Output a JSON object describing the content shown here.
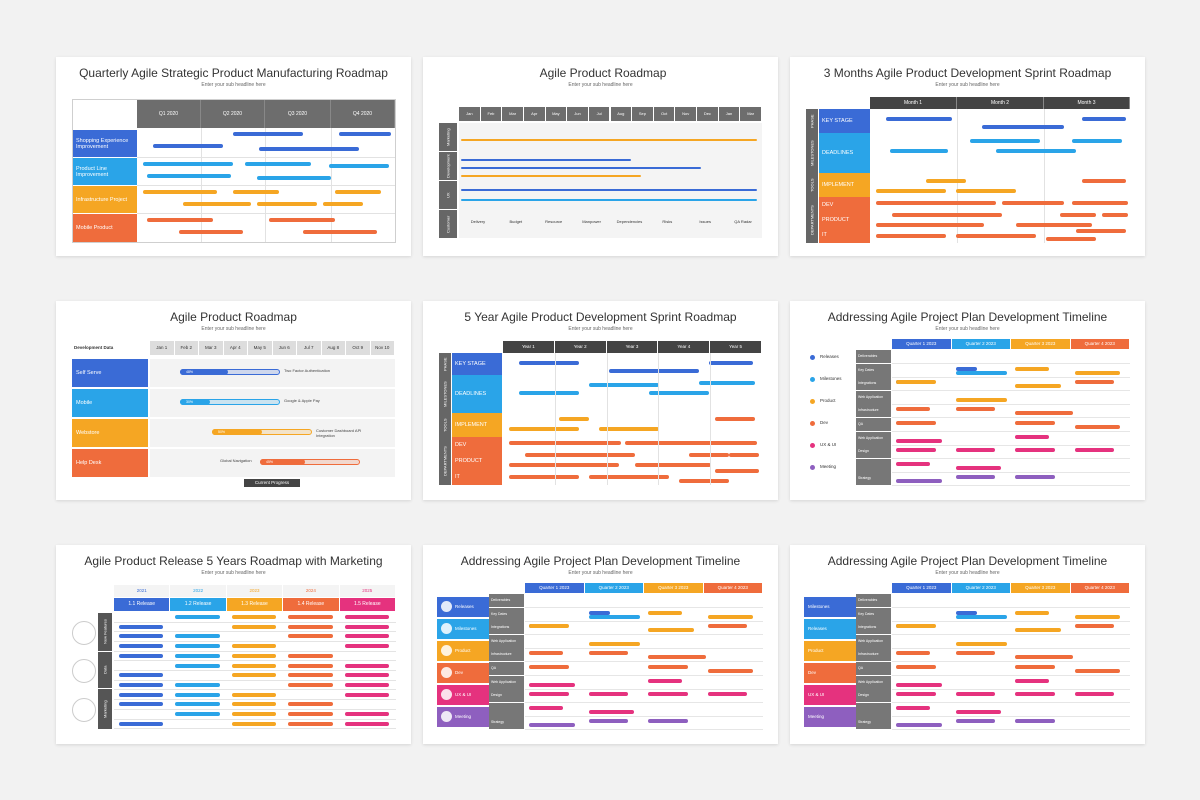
{
  "colors": {
    "blue": "#3a6bd6",
    "lblue": "#2aa4e8",
    "orange": "#f5a623",
    "dorange": "#ef6c3c",
    "pink": "#e5327e",
    "purple": "#8e5fbf",
    "gray": "#6d6d6d"
  },
  "slides": [
    {
      "title": "Quarterly Agile Strategic Product Manufacturing Roadmap",
      "subtitle": "Enter your sub headline here",
      "quarters": [
        "Q1 2020",
        "Q2 2020",
        "Q3 2020",
        "Q4 2020"
      ],
      "rows": [
        "Shopping Experience Improvement",
        "Product Line Improvement",
        "Infrastructure Project",
        "Mobile Product"
      ]
    },
    {
      "title": "Agile Product Roadmap",
      "subtitle": "Enter your sub headline here",
      "months": [
        "Jan",
        "Feb",
        "Mar",
        "Apr",
        "May",
        "Jun",
        "Jul",
        "Aug",
        "Sep",
        "Oct",
        "Nov",
        "Dec",
        "Jan",
        "Mar"
      ],
      "sections": [
        "Marketing",
        "Development",
        "UX",
        "Customer"
      ],
      "customer_items": [
        "Delivery",
        "Budget",
        "Resource",
        "Manpower",
        "Dependencies",
        "Risks",
        "Issues",
        "QA Radar"
      ]
    },
    {
      "title": "3 Months Agile Product Development Sprint Roadmap",
      "subtitle": "Enter your sub headline here",
      "periods": [
        "Month 1",
        "Month 2",
        "Month 3"
      ],
      "groups": [
        "PHASE",
        "MILESTONES",
        "TOOLS",
        "DEPARTMENTS"
      ],
      "rows": [
        "KEY STAGE",
        "DEADLINES",
        "IMPLEMENT",
        "DEV",
        "PRODUCT",
        "IT"
      ]
    },
    {
      "title": "Agile Product Roadmap",
      "subtitle": "Enter your sub headline here",
      "head": "Development Data",
      "dates": [
        "Jan 1",
        "Feb 2",
        "Mar 3",
        "Apr 4",
        "May 5",
        "Jun 6",
        "Jul 7",
        "Aug 8",
        "Oct 9",
        "Nov 10"
      ],
      "rows": [
        {
          "label": "Self Serve",
          "pct": "48%",
          "note": "Two Factor Authentication",
          "progress": 0.48
        },
        {
          "label": "Mobile",
          "pct": "30%",
          "note": "Google & Apple Pay",
          "progress": 0.3
        },
        {
          "label": "Webstore",
          "pct": "50%",
          "note": "Customer Dashboard API Integration",
          "progress": 0.5
        },
        {
          "label": "Help Desk",
          "pct": "45%",
          "note": "Global Navigation",
          "progress": 0.45
        }
      ],
      "footer": "Current Progress"
    },
    {
      "title": "5 Year Agile Product Development Sprint Roadmap",
      "subtitle": "Enter your sub headline here",
      "periods": [
        "Year 1",
        "Year 2",
        "Year 3",
        "Year 4",
        "Year 5"
      ],
      "groups": [
        "PHASE",
        "MILESTONES",
        "TOOLS",
        "DEPARTMENTS"
      ],
      "rows": [
        "KEY STAGE",
        "DEADLINES",
        "IMPLEMENT",
        "DEV",
        "PRODUCT",
        "IT"
      ]
    },
    {
      "title": "Addressing Agile Project Plan Development Timeline",
      "subtitle": "Enter your sub headline here",
      "quarters": [
        "Quarter 1 2023",
        "Quarter 2 2023",
        "Quarter 3 2023",
        "Quarter 4 2023"
      ],
      "legend": [
        "Releases",
        "Milestones",
        "Product",
        "Dev",
        "UX & UI",
        "Meeting"
      ],
      "cats": [
        "Deliverables",
        "Key Dates",
        "Integrations",
        "Web Application",
        "Infrastructure",
        "QA",
        "Web Application",
        "Design",
        "",
        "Strategy"
      ]
    },
    {
      "title": "Agile Product Release 5 Years Roadmap with Marketing",
      "subtitle": "Enter your sub headline here",
      "years": [
        "2021",
        "2022",
        "2023",
        "2024",
        "2025"
      ],
      "releases": [
        "1.1 Release",
        "1.2 Release",
        "1.3 Release",
        "1.4 Release",
        "1.5 Release"
      ],
      "groups": [
        "New Features",
        "Data",
        "Marketing"
      ]
    },
    {
      "title": "Addressing Agile Project Plan Development Timeline",
      "subtitle": "Enter your sub headline here",
      "quarters": [
        "Quarter 1 2023",
        "Quarter 2 2023",
        "Quarter 3 2023",
        "Quarter 4 2023"
      ],
      "legend": [
        "Releases",
        "Milestones",
        "Product",
        "Dev",
        "UX & UI",
        "Meeting"
      ],
      "cats": [
        "Deliverables",
        "Key Dates",
        "Integrations",
        "Web Application",
        "Infrastructure",
        "QA",
        "Web Application",
        "Design",
        "",
        "Strategy"
      ]
    },
    {
      "title": "Addressing Agile Project Plan Development Timeline",
      "subtitle": "Enter your sub headline here",
      "quarters": [
        "Quarter 1 2023",
        "Quarter 2 2023",
        "Quarter 3 2023",
        "Quarter 4 2023"
      ],
      "legend": [
        "Milestones",
        "Releases",
        "Product",
        "Dev",
        "UX & UI",
        "Meeting"
      ],
      "cats": [
        "Deliverables",
        "Key Dates",
        "Integrations",
        "Web Application",
        "Infrastructure",
        "QA",
        "Web Application",
        "Design",
        "",
        "Strategy"
      ]
    }
  ]
}
